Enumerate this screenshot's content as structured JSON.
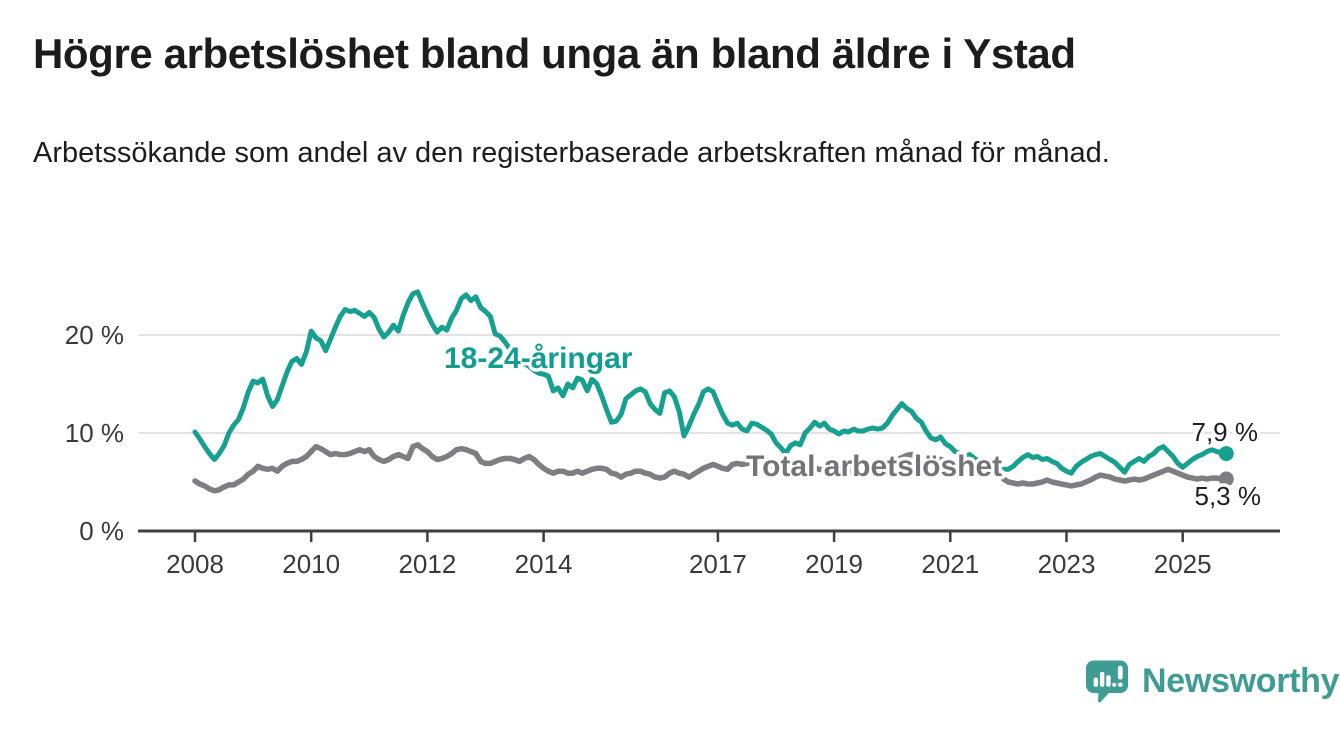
{
  "header": {
    "title": "Högre arbetslöshet bland unga än bland äldre i Ystad",
    "subtitle": "Arbetssökande som andel av den registerbaserade arbetskraften månad för månad."
  },
  "footer": {
    "brand": "Newsworthy"
  },
  "colors": {
    "young_line": "#16a090",
    "young_label": "#0f9e90",
    "total_line": "#7e7e82",
    "total_label": "#747478",
    "grid": "#dadada",
    "axis": "#3f3f3f",
    "axis_text": "#3a3a3a",
    "end_label_text": "#1f1f1f",
    "logo_teal": "#3f9c94"
  },
  "chart_data": {
    "type": "line",
    "unit": "%",
    "grid": true,
    "legend": "inline-labels",
    "x_domain": [
      2008.0,
      2025.75
    ],
    "y_domain": [
      0,
      26
    ],
    "x_ticks": [
      2008,
      2010,
      2012,
      2014,
      2017,
      2019,
      2021,
      2023,
      2025
    ],
    "y_ticks": [
      {
        "value": 0,
        "label": "0 %"
      },
      {
        "value": 10,
        "label": "10 %"
      },
      {
        "value": 20,
        "label": "20 %"
      }
    ],
    "note": "monthly values; data gap Nov 2021",
    "series": [
      {
        "id": "total",
        "label": "Total arbetslöshet",
        "color": "#7e7e82",
        "label_color": "#747478",
        "end_value": 5.3,
        "end_label": "5,3 %",
        "segments": [
          {
            "start": 2008.0,
            "values": [
              5.1,
              4.8,
              4.6,
              4.3,
              4.1,
              4.2,
              4.5,
              4.7,
              4.7,
              5.0,
              5.3,
              5.8,
              6.1,
              6.6,
              6.4,
              6.3,
              6.4,
              6.1,
              6.6,
              6.9,
              7.1,
              7.1,
              7.3,
              7.6,
              8.1,
              8.6,
              8.4,
              8.1,
              7.8,
              7.9,
              7.8,
              7.8,
              7.9,
              8.1,
              8.3,
              8.1,
              8.3,
              7.6,
              7.3,
              7.1,
              7.3,
              7.6,
              7.8,
              7.6,
              7.4,
              8.6,
              8.8,
              8.4,
              8.1,
              7.6,
              7.3,
              7.4,
              7.6,
              7.9,
              8.3,
              8.4,
              8.3,
              8.1,
              7.9,
              7.1,
              6.9,
              6.9,
              7.1,
              7.3,
              7.4,
              7.4,
              7.3,
              7.1,
              7.4,
              7.6,
              7.3,
              6.8,
              6.4,
              6.1,
              5.9,
              6.1,
              6.1,
              5.9,
              5.9,
              6.1,
              5.9,
              6.1,
              6.3,
              6.4,
              6.4,
              6.3,
              5.9,
              5.8,
              5.5,
              5.8,
              5.9,
              6.1,
              6.1,
              5.9,
              5.8,
              5.5,
              5.4,
              5.5,
              5.9,
              6.1,
              5.9,
              5.8,
              5.5,
              5.8,
              6.1,
              6.4,
              6.6,
              6.8,
              6.6,
              6.4,
              6.3,
              6.8,
              6.9,
              6.8,
              6.9,
              7.0,
              6.9,
              6.7,
              6.5,
              6.3,
              6.1,
              5.9,
              5.8,
              5.9,
              6.0,
              6.1,
              6.2,
              6.3,
              6.4,
              6.3,
              6.2,
              6.1,
              6.0,
              5.9,
              6.0,
              6.1,
              6.2,
              6.3,
              6.4,
              6.4,
              6.5,
              6.5,
              6.6,
              6.8,
              7.0,
              7.2,
              7.5,
              7.7,
              7.8,
              7.8,
              7.7,
              7.6,
              7.5,
              7.4,
              7.3,
              7.2,
              7.1,
              7.0,
              6.9,
              6.8,
              6.7,
              6.6,
              6.5,
              6.4,
              6.3,
              6.2
            ]
          },
          {
            "start": 2021.9167,
            "values": [
              5.3,
              5.0,
              4.9,
              4.8,
              4.9,
              4.8,
              4.8,
              4.9,
              5.0,
              5.2,
              5.0,
              4.9,
              4.8,
              4.7,
              4.6,
              4.7,
              4.8,
              5.0,
              5.2,
              5.5,
              5.7,
              5.6,
              5.5,
              5.3,
              5.2,
              5.1,
              5.2,
              5.3,
              5.2,
              5.3,
              5.5,
              5.7,
              5.9,
              6.1,
              6.3,
              6.1,
              5.9,
              5.7,
              5.5,
              5.4,
              5.3,
              5.4,
              5.3,
              5.4,
              5.4,
              5.3,
              5.3
            ]
          }
        ]
      },
      {
        "id": "young",
        "label": "18-24-åringar",
        "color": "#16a090",
        "label_color": "#0f9e90",
        "end_value": 7.9,
        "end_label": "7,9 %",
        "segments": [
          {
            "start": 2008.0,
            "values": [
              10.1,
              9.4,
              8.6,
              7.9,
              7.3,
              7.9,
              8.7,
              10.0,
              10.8,
              11.4,
              12.6,
              14.2,
              15.3,
              15.1,
              15.5,
              13.8,
              12.7,
              13.4,
              14.8,
              16.2,
              17.3,
              17.6,
              17.0,
              18.3,
              20.4,
              19.7,
              19.4,
              18.4,
              19.6,
              20.8,
              21.9,
              22.6,
              22.4,
              22.5,
              22.2,
              21.9,
              22.3,
              21.8,
              20.6,
              19.8,
              20.3,
              21.0,
              20.4,
              22.0,
              23.3,
              24.2,
              24.4,
              23.2,
              22.1,
              21.1,
              20.3,
              20.8,
              20.5,
              21.7,
              22.5,
              23.7,
              24.1,
              23.5,
              23.9,
              22.8,
              22.4,
              21.9,
              20.1,
              19.9,
              19.3,
              18.6,
              18.0,
              17.5,
              17.1,
              16.8,
              16.4,
              16.1,
              16.0,
              15.8,
              14.3,
              14.6,
              13.8,
              15.0,
              14.6,
              15.6,
              15.4,
              14.3,
              15.5,
              15.0,
              13.8,
              12.4,
              11.1,
              11.2,
              11.9,
              13.5,
              13.9,
              14.3,
              14.5,
              14.2,
              13.0,
              12.4,
              12.0,
              14.1,
              14.3,
              13.7,
              12.2,
              9.7,
              10.7,
              11.9,
              12.9,
              14.2,
              14.5,
              14.2,
              13.0,
              11.9,
              11.0,
              10.8,
              11.0,
              10.4,
              10.2,
              11.0,
              10.9,
              10.6,
              10.3,
              9.9,
              9.0,
              8.5,
              7.9,
              8.7,
              9.0,
              8.8,
              10.0,
              10.5,
              11.1,
              10.7,
              11.0,
              10.4,
              10.2,
              9.9,
              10.2,
              10.1,
              10.4,
              10.2,
              10.2,
              10.4,
              10.5,
              10.4,
              10.5,
              11.0,
              11.8,
              12.4,
              13.0,
              12.5,
              12.2,
              11.5,
              11.1,
              10.2,
              9.5,
              9.3,
              9.6,
              8.9,
              8.6,
              8.1,
              7.9,
              7.6,
              7.8,
              7.4,
              7.1,
              6.9,
              6.8,
              6.6
            ]
          },
          {
            "start": 2021.9167,
            "values": [
              6.3,
              6.3,
              6.6,
              7.1,
              7.5,
              7.8,
              7.5,
              7.6,
              7.3,
              7.4,
              7.1,
              6.9,
              6.4,
              6.1,
              5.9,
              6.6,
              7.0,
              7.3,
              7.6,
              7.8,
              7.9,
              7.6,
              7.3,
              7.0,
              6.5,
              6.0,
              6.8,
              7.1,
              7.4,
              7.1,
              7.6,
              7.9,
              8.4,
              8.6,
              8.1,
              7.6,
              6.9,
              6.5,
              6.9,
              7.3,
              7.6,
              7.8,
              8.1,
              8.3,
              8.1,
              8.0,
              7.9
            ]
          }
        ]
      }
    ]
  }
}
